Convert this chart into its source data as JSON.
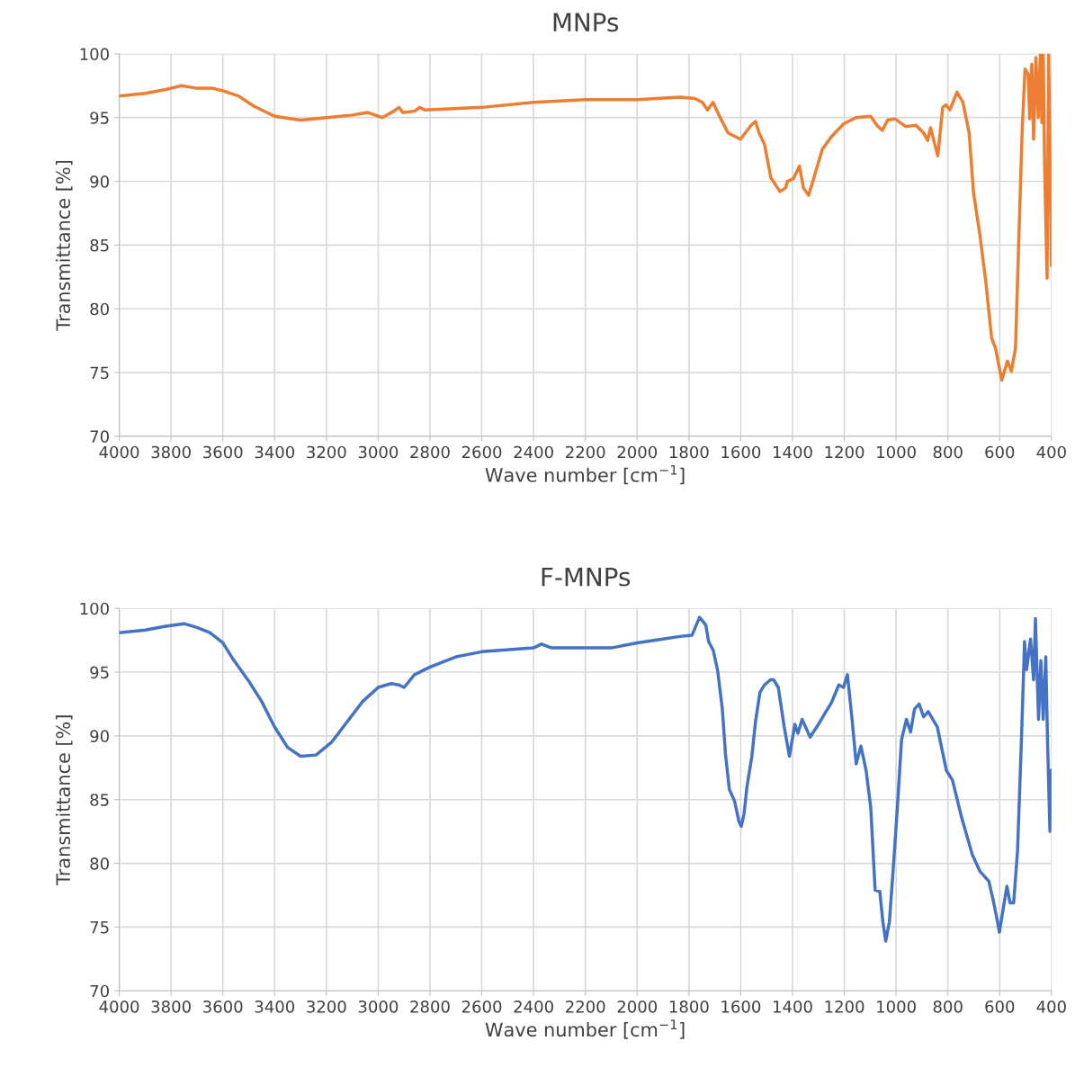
{
  "chart_data": [
    {
      "type": "line",
      "title": "MNPs",
      "xlabel": "Wave number [cm$^{−1}$]",
      "ylabel": "Transmittance [%]",
      "xlim": [
        4000,
        400
      ],
      "ylim": [
        70,
        100
      ],
      "xticks": [
        4000,
        3800,
        3600,
        3400,
        3200,
        3000,
        2800,
        2600,
        2400,
        2200,
        2000,
        1800,
        1600,
        1400,
        1200,
        1000,
        800,
        600,
        400
      ],
      "yticks": [
        70,
        75,
        80,
        85,
        90,
        95,
        100
      ],
      "grid": true,
      "marker": "none",
      "line_style": "solid",
      "series": [
        {
          "color": "#ed7d31",
          "x": [
            4000,
            3900,
            3820,
            3760,
            3700,
            3640,
            3600,
            3540,
            3480,
            3400,
            3300,
            3200,
            3100,
            3040,
            2985,
            2940,
            2920,
            2905,
            2860,
            2840,
            2820,
            2600,
            2400,
            2200,
            2000,
            1835,
            1777,
            1748,
            1728,
            1707,
            1684,
            1649,
            1601,
            1560,
            1543,
            1529,
            1508,
            1484,
            1449,
            1426,
            1420,
            1397,
            1373,
            1358,
            1338,
            1320,
            1285,
            1250,
            1203,
            1156,
            1098,
            1074,
            1053,
            1033,
            1004,
            963,
            923,
            894,
            878,
            867,
            853,
            839,
            820,
            808,
            792,
            765,
            742,
            718,
            701,
            677,
            654,
            631,
            616,
            592,
            570,
            555,
            539,
            525,
            513,
            502,
            490,
            484,
            476,
            469,
            460,
            451,
            443,
            437,
            432,
            426,
            417,
            411,
            406,
            400
          ],
          "values": [
            96.7,
            96.9,
            97.2,
            97.5,
            97.3,
            97.3,
            97.1,
            96.7,
            95.9,
            95.1,
            94.8,
            95.0,
            95.2,
            95.4,
            95.0,
            95.5,
            95.8,
            95.4,
            95.5,
            95.8,
            95.6,
            95.8,
            96.2,
            96.4,
            96.4,
            96.6,
            96.5,
            96.2,
            95.6,
            96.2,
            95.2,
            93.8,
            93.3,
            94.4,
            94.7,
            93.8,
            92.9,
            90.3,
            89.2,
            89.5,
            90.0,
            90.2,
            91.2,
            89.5,
            88.9,
            90.1,
            92.5,
            93.5,
            94.5,
            95.0,
            95.1,
            94.4,
            94.0,
            94.8,
            94.9,
            94.3,
            94.4,
            93.8,
            93.2,
            94.2,
            93.1,
            92.0,
            95.8,
            96.0,
            95.6,
            97.0,
            96.2,
            93.8,
            89.1,
            85.9,
            82.2,
            77.7,
            76.9,
            74.4,
            75.9,
            75.1,
            76.9,
            86.2,
            94.1,
            98.8,
            98.4,
            94.9,
            99.2,
            93.3,
            99.7,
            95.0,
            100.0,
            94.6,
            100.0,
            90.7,
            82.4,
            100.0,
            92.8,
            83.4
          ]
        }
      ]
    },
    {
      "type": "line",
      "title": "F-MNPs",
      "xlabel": "Wave number [cm$^{−1}$]",
      "ylabel": "Transmittance [%]",
      "xlim": [
        4000,
        400
      ],
      "ylim": [
        70,
        100
      ],
      "xticks": [
        4000,
        3800,
        3600,
        3400,
        3200,
        3000,
        2800,
        2600,
        2400,
        2200,
        2000,
        1800,
        1600,
        1400,
        1200,
        1000,
        800,
        600,
        400
      ],
      "yticks": [
        70,
        75,
        80,
        85,
        90,
        95,
        100
      ],
      "grid": true,
      "marker": "none",
      "line_style": "solid",
      "series": [
        {
          "color": "#4472c4",
          "x": [
            4000,
            3900,
            3820,
            3750,
            3700,
            3650,
            3600,
            3560,
            3500,
            3450,
            3400,
            3350,
            3300,
            3240,
            3180,
            3120,
            3060,
            3000,
            2950,
            2920,
            2900,
            2860,
            2800,
            2700,
            2600,
            2400,
            2370,
            2330,
            2200,
            2100,
            2000,
            1900,
            1835,
            1788,
            1759,
            1735,
            1724,
            1706,
            1689,
            1671,
            1659,
            1644,
            1624,
            1607,
            1598,
            1587,
            1576,
            1557,
            1543,
            1526,
            1508,
            1485,
            1473,
            1455,
            1432,
            1412,
            1391,
            1379,
            1363,
            1332,
            1297,
            1274,
            1250,
            1221,
            1203,
            1188,
            1171,
            1154,
            1136,
            1116,
            1098,
            1081,
            1063,
            1051,
            1040,
            1026,
            1011,
            995,
            979,
            960,
            944,
            929,
            911,
            894,
            876,
            841,
            806,
            782,
            747,
            706,
            677,
            642,
            625,
            613,
            601,
            586,
            572,
            560,
            546,
            531,
            516,
            504,
            496,
            481,
            469,
            462,
            450,
            441,
            432,
            422,
            415,
            406,
            400
          ],
          "values": [
            98.1,
            98.3,
            98.6,
            98.8,
            98.5,
            98.1,
            97.3,
            96.0,
            94.3,
            92.7,
            90.7,
            89.1,
            88.4,
            88.5,
            89.5,
            91.1,
            92.7,
            93.8,
            94.1,
            94.0,
            93.8,
            94.8,
            95.4,
            96.2,
            96.6,
            96.9,
            97.2,
            96.9,
            96.9,
            96.9,
            97.3,
            97.6,
            97.8,
            97.9,
            99.3,
            98.7,
            97.4,
            96.7,
            95.1,
            92.1,
            88.6,
            85.8,
            84.9,
            83.3,
            82.9,
            83.9,
            86.0,
            88.4,
            91.1,
            93.4,
            94.0,
            94.4,
            94.4,
            93.8,
            90.7,
            88.4,
            90.9,
            90.2,
            91.3,
            89.9,
            91.0,
            91.8,
            92.6,
            94.0,
            93.8,
            94.8,
            91.5,
            87.8,
            89.2,
            87.3,
            84.4,
            77.9,
            77.8,
            75.4,
            73.9,
            75.4,
            79.6,
            84.4,
            89.7,
            91.3,
            90.3,
            92.1,
            92.5,
            91.5,
            91.9,
            90.7,
            87.3,
            86.5,
            83.6,
            80.7,
            79.4,
            78.6,
            77.1,
            75.9,
            74.6,
            76.5,
            78.2,
            76.9,
            76.9,
            81.0,
            89.7,
            97.4,
            95.2,
            97.6,
            94.4,
            99.2,
            91.3,
            95.9,
            91.3,
            96.2,
            89.4,
            82.5,
            87.3
          ]
        }
      ]
    }
  ]
}
